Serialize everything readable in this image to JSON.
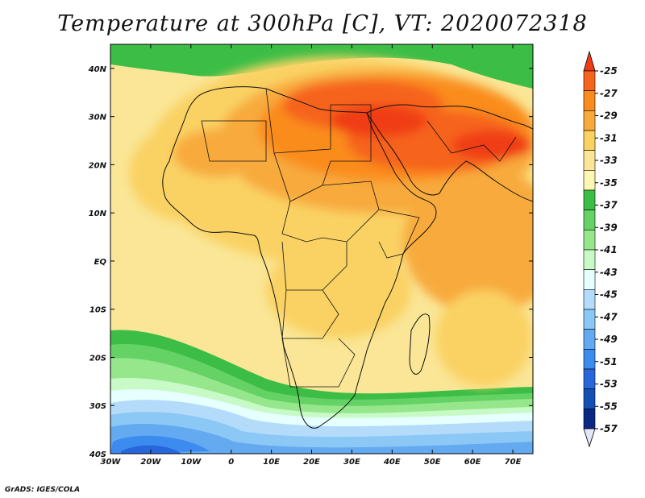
{
  "title": "Temperature at 300hPa [C], VT: 2020072318",
  "credit": "GrADS: IGES/COLA",
  "map": {
    "region": "Africa and Middle East",
    "lon_range": [
      -30,
      75
    ],
    "lat_range": [
      -40,
      45
    ],
    "lon_ticks": [
      "30W",
      "20W",
      "10W",
      "0",
      "10E",
      "20E",
      "30E",
      "40E",
      "50E",
      "60E",
      "70E"
    ],
    "lat_ticks": [
      "40N",
      "30N",
      "20N",
      "10N",
      "EQ",
      "10S",
      "20S",
      "30S",
      "40S"
    ]
  },
  "colorbar": {
    "labels": [
      "-25",
      "-27",
      "-29",
      "-31",
      "-33",
      "-35",
      "-37",
      "-39",
      "-41",
      "-43",
      "-45",
      "-47",
      "-49",
      "-51",
      "-53",
      "-55",
      "-57"
    ],
    "colors": [
      "#f03c14",
      "#f6641e",
      "#fa8c1e",
      "#f8aa3c",
      "#fad264",
      "#fae696",
      "#fef6b4",
      "#3cbe46",
      "#64d264",
      "#96e68c",
      "#c8fac8",
      "#e6ffff",
      "#b4dcfa",
      "#8cc8f5",
      "#64aaf0",
      "#3c8cf0",
      "#2866dc",
      "#1450b4",
      "#0a2882",
      "#e6e6fa"
    ]
  }
}
